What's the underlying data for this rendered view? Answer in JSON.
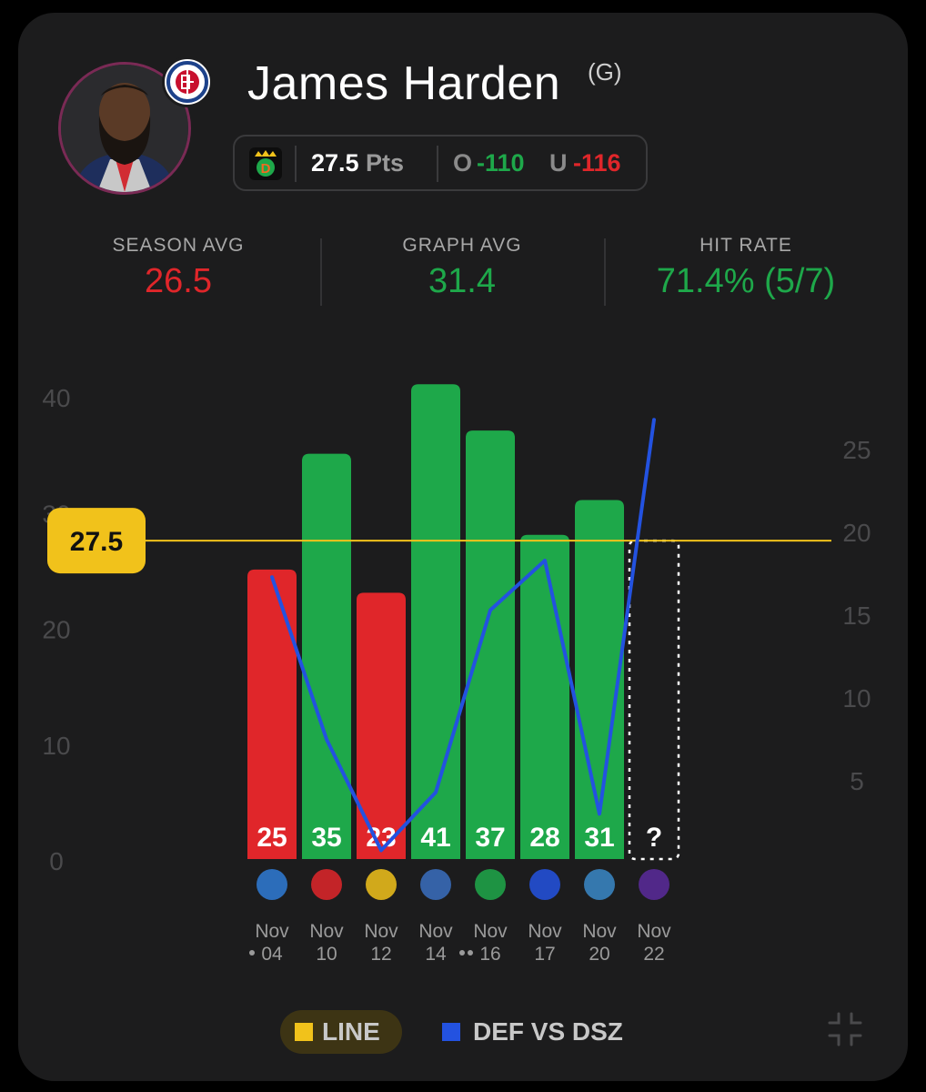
{
  "player": {
    "name": "James Harden",
    "position": "(G)",
    "team_icon": "clippers-logo",
    "avatar_icon": "player-headshot"
  },
  "prop": {
    "book_icon": "draftkings-logo",
    "line": "27.5",
    "unit": "Pts",
    "over_label": "O",
    "over_odds": "-110",
    "under_label": "U",
    "under_odds": "-116"
  },
  "stats": {
    "season_avg_label": "SEASON AVG",
    "season_avg_value": "26.5",
    "graph_avg_label": "GRAPH AVG",
    "graph_avg_value": "31.4",
    "hit_rate_label": "HIT RATE",
    "hit_rate_value": "71.4% (5/7)"
  },
  "colors": {
    "hit": "#1ea84a",
    "miss": "#e0262a",
    "line": "#f1c21b",
    "defense": "#2352e0",
    "background": "#1c1c1d"
  },
  "chart_data": {
    "type": "bar",
    "line_label": "27.5",
    "line_value": 27.5,
    "left_axis": {
      "ticks": [
        "40",
        "30",
        "20",
        "10",
        "0"
      ],
      "tick_values": [
        40,
        30,
        20,
        10,
        0
      ],
      "ylim": [
        0,
        40
      ]
    },
    "right_axis": {
      "ticks": [
        "25",
        "20",
        "15",
        "10",
        "5"
      ],
      "tick_values": [
        25,
        20,
        15,
        10,
        5
      ],
      "ylim": [
        0,
        28
      ]
    },
    "games": [
      {
        "month": "Nov",
        "day": "04",
        "dots": 1,
        "points": 25,
        "label": "25",
        "result": "miss",
        "opponent_icon": "okc-thunder-logo"
      },
      {
        "month": "Nov",
        "day": "10",
        "dots": 0,
        "points": 35,
        "label": "35",
        "result": "hit",
        "opponent_icon": "atlanta-hawks-logo"
      },
      {
        "month": "Nov",
        "day": "12",
        "dots": 0,
        "points": 23,
        "label": "23",
        "result": "miss",
        "opponent_icon": "denver-nuggets-logo"
      },
      {
        "month": "Nov",
        "day": "14",
        "dots": 0,
        "points": 41,
        "label": "41",
        "result": "hit",
        "opponent_icon": "dallas-mavericks-logo"
      },
      {
        "month": "Nov",
        "day": "16",
        "dots": 2,
        "points": 37,
        "label": "37",
        "result": "hit",
        "opponent_icon": "boston-celtics-logo"
      },
      {
        "month": "Nov",
        "day": "17",
        "dots": 0,
        "points": 28,
        "label": "28",
        "result": "hit",
        "opponent_icon": "philadelphia-76ers-logo"
      },
      {
        "month": "Nov",
        "day": "20",
        "dots": 0,
        "points": 31,
        "label": "31",
        "result": "hit",
        "opponent_icon": "orlando-magic-logo"
      },
      {
        "month": "Nov",
        "day": "22",
        "dots": 0,
        "points": null,
        "label": "?",
        "result": "upcoming",
        "opponent_icon": "charlotte-hornets-logo"
      }
    ],
    "defense_series": {
      "name": "DEF VS DSZ",
      "values": [
        17.3,
        7.5,
        0.8,
        4.3,
        15.3,
        18.3,
        3.0,
        26.8
      ]
    }
  },
  "legend": {
    "line_label": "LINE",
    "defense_label": "DEF VS DSZ"
  },
  "controls": {
    "collapse_icon": "collapse-arrows-icon"
  }
}
